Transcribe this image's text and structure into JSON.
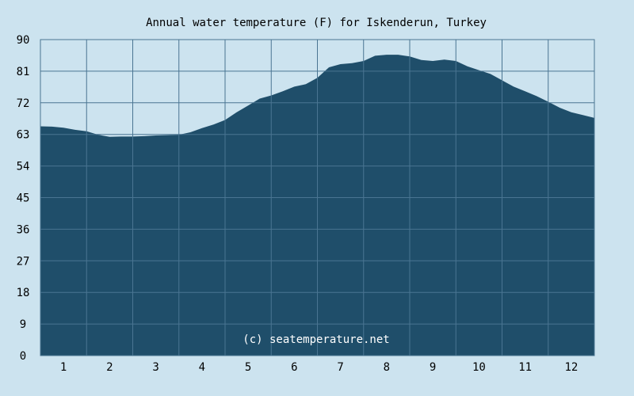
{
  "chart_data": {
    "type": "area",
    "title": "Annual water temperature (F) for Iskenderun, Turkey",
    "xlabel": "",
    "ylabel": "",
    "ylim": [
      0,
      90
    ],
    "xlim": [
      0.5,
      12.5
    ],
    "yticks": [
      "0",
      "9",
      "18",
      "27",
      "36",
      "45",
      "54",
      "63",
      "72",
      "81",
      "90"
    ],
    "xticks": [
      "1",
      "2",
      "3",
      "4",
      "5",
      "6",
      "7",
      "8",
      "9",
      "10",
      "11",
      "12"
    ],
    "grid": true,
    "annotation": "(c) seatemperature.net",
    "series": [
      {
        "x": [
          0.5,
          0.75,
          1.0,
          1.25,
          1.5,
          1.75,
          2.0,
          2.25,
          2.5,
          2.75,
          3.0,
          3.25,
          3.5,
          3.75,
          4.0,
          4.25,
          4.5,
          4.75,
          5.0,
          5.25,
          5.5,
          5.75,
          6.0,
          6.25,
          6.5,
          6.75,
          7.0,
          7.25,
          7.5,
          7.75,
          8.0,
          8.25,
          8.5,
          8.75,
          9.0,
          9.25,
          9.5,
          9.75,
          10.0,
          10.25,
          10.5,
          10.75,
          11.0,
          11.25,
          11.5,
          11.75,
          12.0,
          12.25,
          12.5
        ],
        "values": [
          65.3,
          65.2,
          64.9,
          64.3,
          63.9,
          62.9,
          62.3,
          62.4,
          62.4,
          62.5,
          62.7,
          62.8,
          62.9,
          63.6,
          64.8,
          65.8,
          67.1,
          69.3,
          71.2,
          73.2,
          74.1,
          75.3,
          76.6,
          77.3,
          79.1,
          82.1,
          83.0,
          83.3,
          83.9,
          85.4,
          85.7,
          85.7,
          85.2,
          84.2,
          83.9,
          84.3,
          83.9,
          82.4,
          81.3,
          80.2,
          78.4,
          76.6,
          75.3,
          73.9,
          72.3,
          70.6,
          69.3,
          68.5,
          67.7
        ]
      }
    ],
    "colors": {
      "background": "#cce3ef",
      "fill": "#1f4e6a",
      "grid": "#4a7592",
      "axes": "#4a7592"
    }
  }
}
